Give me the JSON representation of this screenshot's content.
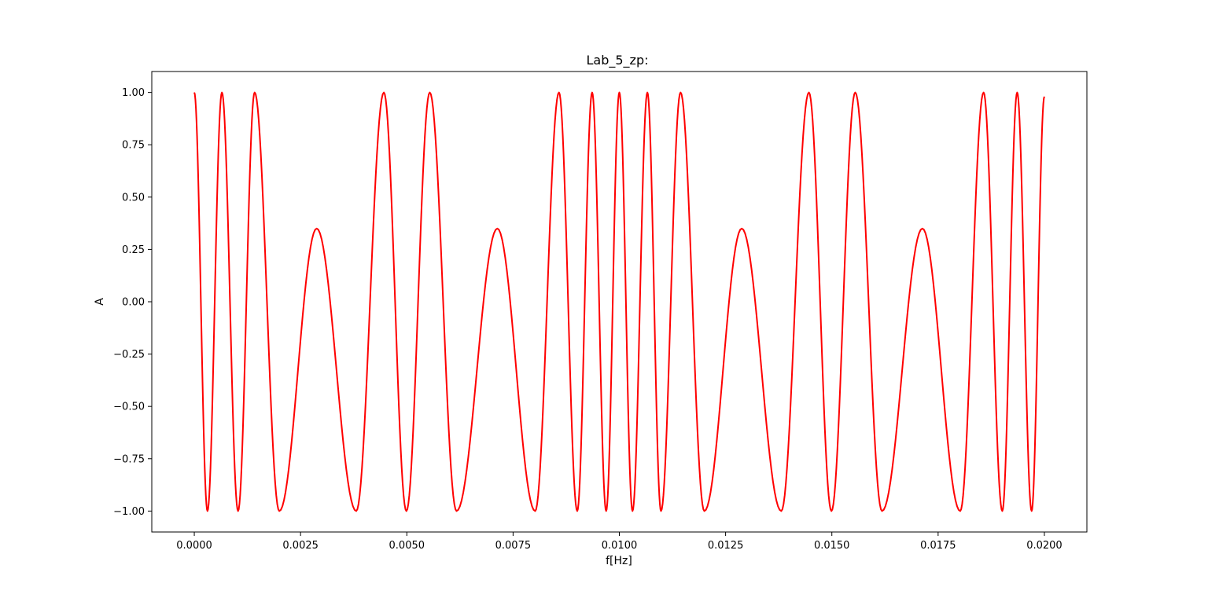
{
  "chart_data": {
    "type": "line",
    "title": "Lab_5_zp:",
    "xlabel": "f[Hz]",
    "ylabel": "A",
    "xlim": [
      -0.001,
      0.021
    ],
    "ylim": [
      -1.1,
      1.1
    ],
    "x_ticks": [
      0.0,
      0.0025,
      0.005,
      0.0075,
      0.01,
      0.0125,
      0.015,
      0.0175,
      0.02
    ],
    "x_tick_labels": [
      "0.0000",
      "0.0025",
      "0.0050",
      "0.0075",
      "0.0100",
      "0.0125",
      "0.0150",
      "0.0175",
      "0.0200"
    ],
    "y_ticks": [
      1.0,
      0.75,
      0.5,
      0.25,
      0.0,
      -0.25,
      -0.5,
      -0.75,
      -1.0
    ],
    "y_tick_labels": [
      "1.00",
      "0.75",
      "0.50",
      "0.25",
      "0.00",
      "−0.25",
      "−0.50",
      "−0.75",
      "−1.00"
    ],
    "grid": false,
    "legend": "none",
    "line_color": "#ff0000",
    "series": [
      {
        "x": [
          0.0,
          0.00031,
          0.00065,
          0.00103,
          0.00142,
          0.002,
          0.00288,
          0.00381,
          0.00446,
          0.00499,
          0.00554,
          0.00617,
          0.00713,
          0.00802,
          0.00858,
          0.00901,
          0.00936,
          0.00969,
          0.01,
          0.01031,
          0.01066,
          0.01098,
          0.01144,
          0.012,
          0.01288,
          0.01381,
          0.01446,
          0.01499,
          0.01555,
          0.01618,
          0.01713,
          0.01802,
          0.01857,
          0.01901,
          0.01936,
          0.0197,
          0.02
        ],
        "y": [
          1.0,
          -1.0,
          1.0,
          -1.0,
          1.0,
          -1.0,
          0.35,
          -1.0,
          1.0,
          -1.0,
          1.0,
          -1.0,
          0.35,
          -1.0,
          1.0,
          -1.0,
          1.0,
          -1.0,
          1.0,
          -1.0,
          1.0,
          -1.0,
          1.0,
          -1.0,
          0.35,
          -1.0,
          1.0,
          -1.0,
          1.0,
          -1.0,
          0.35,
          -1.0,
          1.0,
          -1.0,
          1.0,
          -1.0,
          0.98
        ]
      }
    ]
  }
}
